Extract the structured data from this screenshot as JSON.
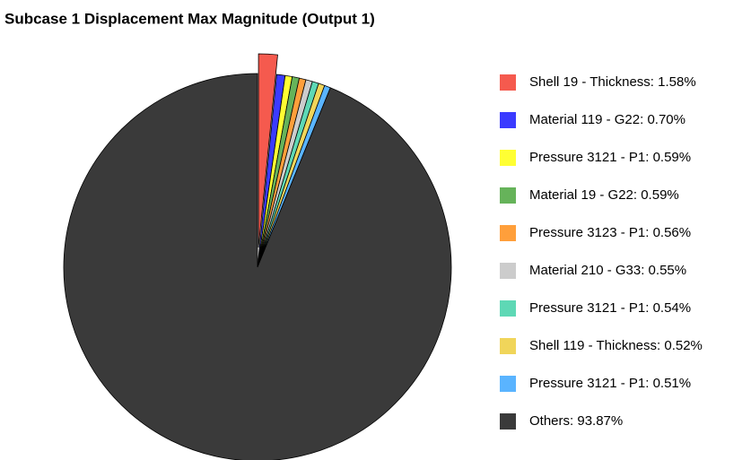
{
  "chart_data": {
    "type": "pie",
    "title": "Subcase 1 Displacement Max Magnitude (Output 1)",
    "categories": [
      "Shell 19 - Thickness: 1.58%",
      "Material 119 - G22: 0.70%",
      "Pressure 3121 - P1: 0.59%",
      "Material 19 - G22: 0.59%",
      "Pressure 3123 - P1: 0.56%",
      "Material 210 - G33: 0.55%",
      "Pressure 3121 - P1: 0.54%",
      "Shell 119 - Thickness: 0.52%",
      "Pressure 3121 - P1: 0.51%",
      "Others: 93.87%"
    ],
    "values": [
      1.58,
      0.7,
      0.59,
      0.59,
      0.56,
      0.55,
      0.54,
      0.52,
      0.51,
      93.87
    ],
    "colors": [
      "#f55a4e",
      "#3b3bff",
      "#ffff33",
      "#66b35a",
      "#ff9f3b",
      "#cccccc",
      "#5ed8b5",
      "#f0d55a",
      "#5ab4ff",
      "#3a3a3a"
    ]
  }
}
